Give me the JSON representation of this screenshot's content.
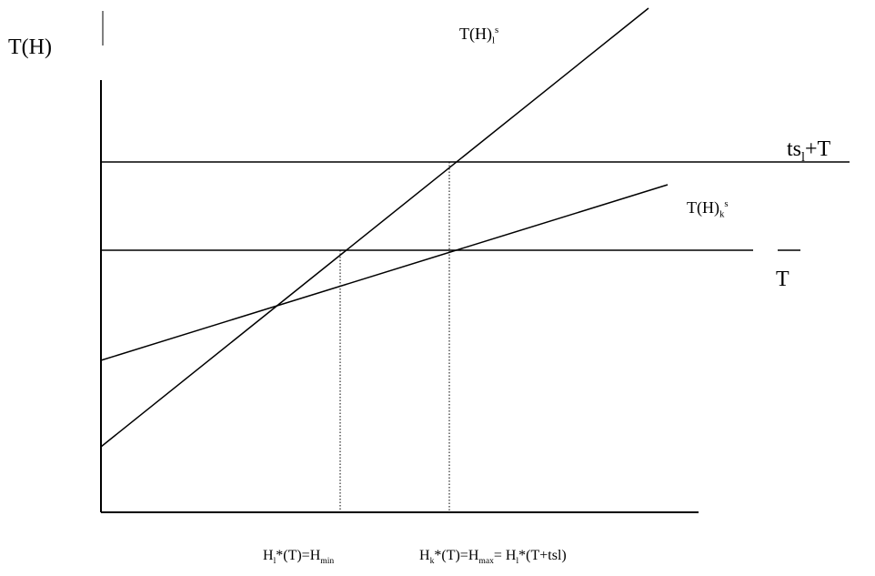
{
  "axes": {
    "y_label": "T(H)"
  },
  "lines": {
    "steep": {
      "name_base": "T(H)",
      "name_sub": "l",
      "name_sup": "s"
    },
    "flat": {
      "name_base": "T(H)",
      "name_sub": "k",
      "name_sup": "s"
    },
    "upper_horizontal": {
      "base": "ts",
      "sub": "l",
      "tail": "+T"
    },
    "lower_horizontal": {
      "label": "T"
    }
  },
  "x_annotations": {
    "left": {
      "p1": "H",
      "p1_sub": "l",
      "p2": "*(T)=H",
      "p2_sub": "min"
    },
    "right": {
      "p1": "H",
      "p1_sub": "k",
      "p2": "*(T)=H",
      "p2_sub": "max",
      "p3": "= H",
      "p3_sub": "l",
      "p4": "*(T+tsl)"
    }
  }
}
